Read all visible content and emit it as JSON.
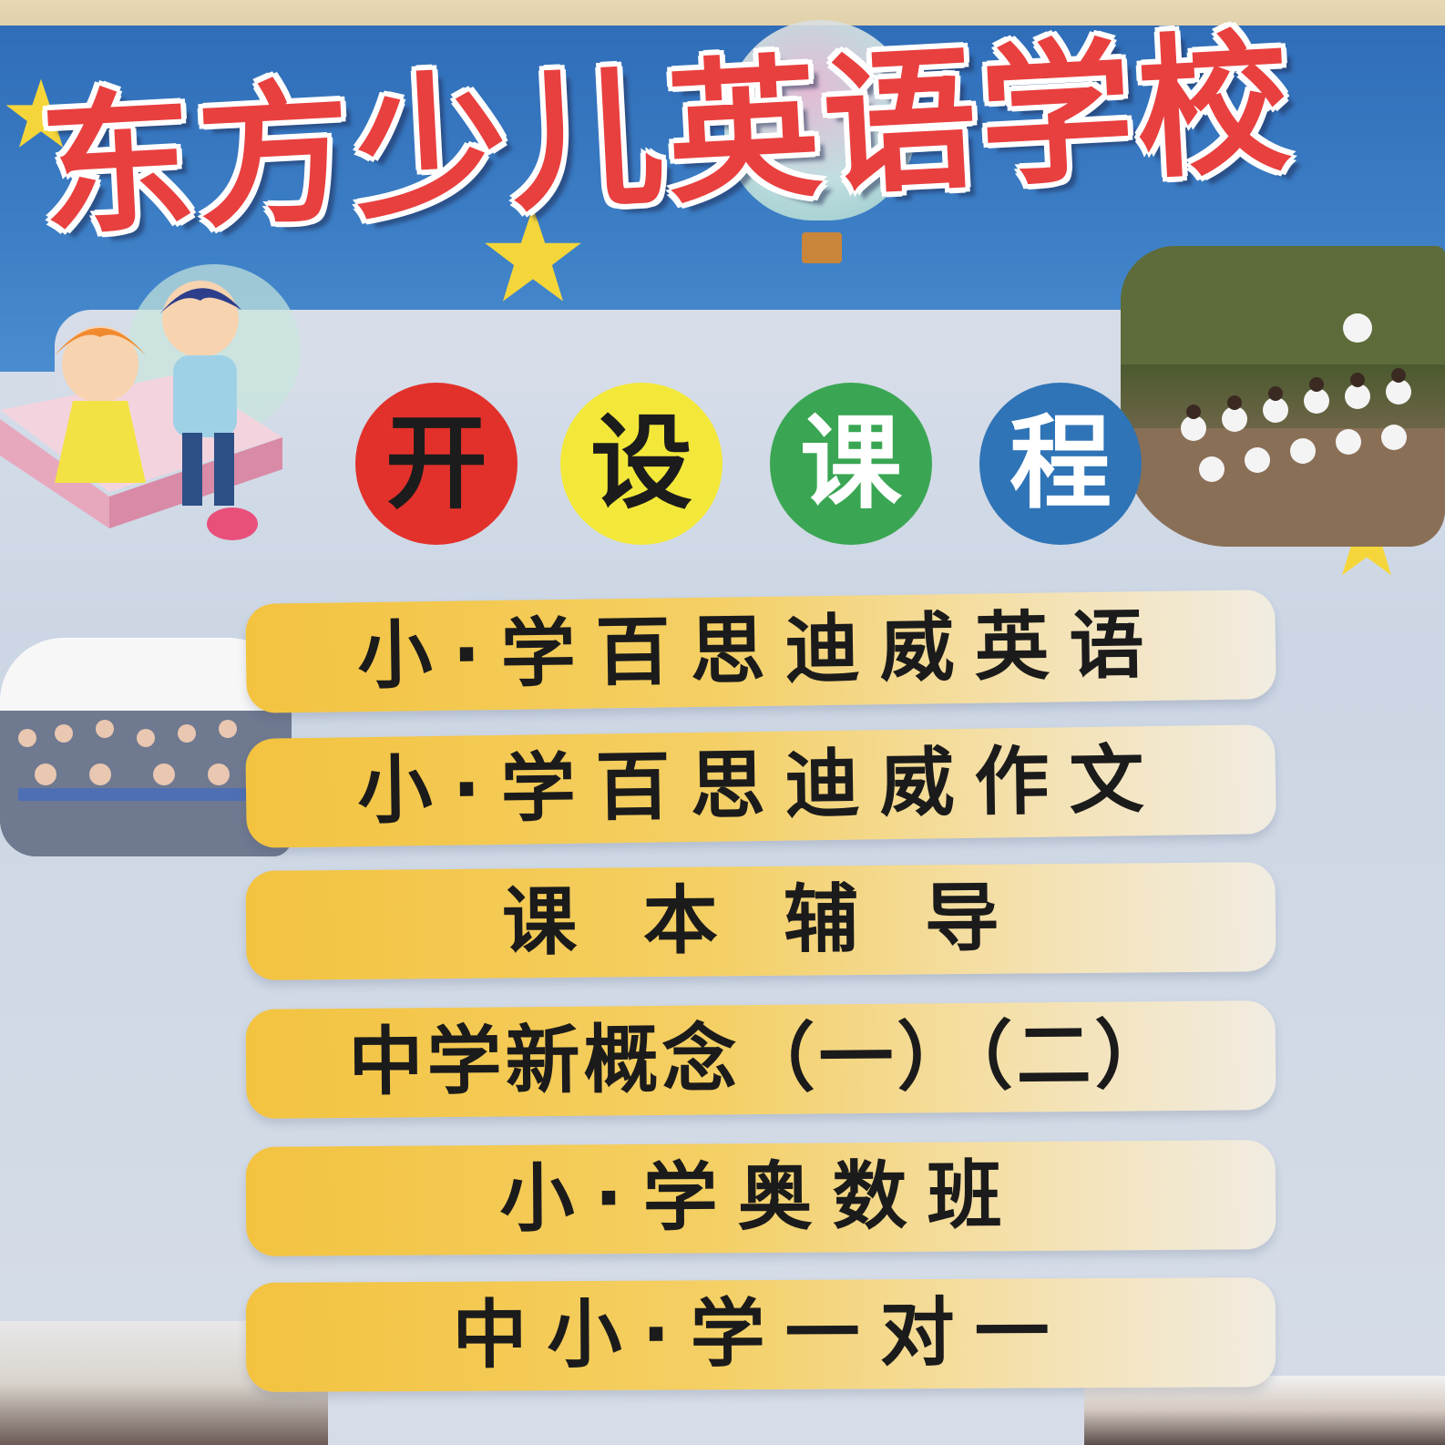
{
  "title": "东方少儿英语学校",
  "section": {
    "chars": [
      "开",
      "设",
      "课",
      "程"
    ],
    "colors": [
      "#e2312b",
      "#f3e83a",
      "#3aa653",
      "#2f74b6"
    ]
  },
  "courses": [
    "小·学百思迪威英语",
    "小·学百思迪威作文",
    "课 本 辅 导",
    "中学新概念（一）（二）",
    "小·学奥数班",
    "中小·学一对一"
  ],
  "colors": {
    "banner": "#2f6db8",
    "title_text": "#e8403f",
    "course_bar": "#f3c340",
    "star": "#f5d63a"
  },
  "icons": [
    "star-icon",
    "hot-air-balloon-icon",
    "children-cartoon"
  ]
}
